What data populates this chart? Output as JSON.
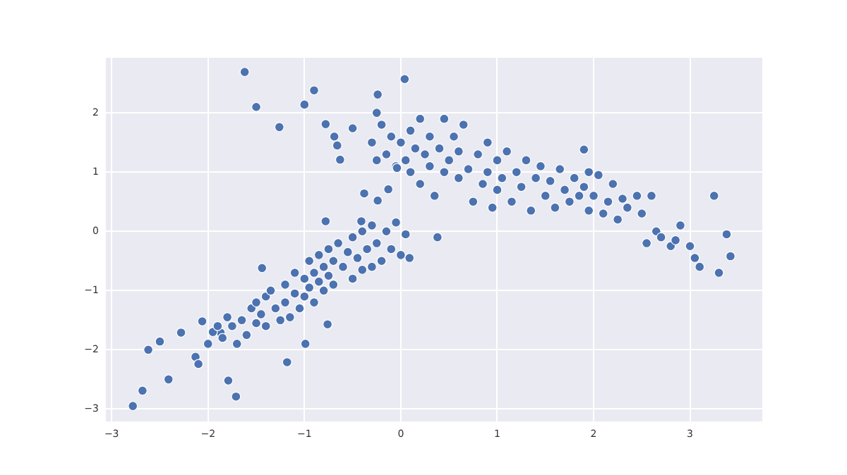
{
  "chart_data": {
    "type": "scatter",
    "marker": "circle",
    "grid": true,
    "legend": false,
    "xlim": [
      -3.06,
      3.75
    ],
    "ylim": [
      -3.21,
      2.93
    ],
    "xticks": [
      {
        "value": -3,
        "label": "−3"
      },
      {
        "value": -2,
        "label": "−2"
      },
      {
        "value": -1,
        "label": "−1"
      },
      0,
      1,
      2,
      3
    ],
    "yticks": [
      {
        "value": -3,
        "label": "−3"
      },
      {
        "value": -2,
        "label": "−2"
      },
      {
        "value": -1,
        "label": "−1"
      },
      0,
      1,
      2
    ],
    "series": [
      {
        "color": "#4c72b0",
        "x": [
          -1.62,
          -1.5,
          -1.26,
          -1.0,
          -0.9,
          -0.24,
          0.04,
          -0.25,
          -0.78,
          -0.69,
          -0.66,
          -0.63,
          -0.5,
          -2.78,
          -2.68,
          -2.62,
          -2.5,
          -2.41,
          -2.28,
          -1.79,
          -1.71,
          -2.13,
          -2.1,
          -2.06,
          -1.87,
          -1.18,
          -0.99,
          -0.76,
          -2.0,
          -1.95,
          -1.9,
          -1.85,
          -1.8,
          -1.75,
          -1.7,
          -1.65,
          -1.6,
          -1.55,
          -1.5,
          -1.5,
          -1.45,
          -1.4,
          -1.4,
          -1.35,
          -1.3,
          -1.25,
          -1.2,
          -1.2,
          -1.15,
          -1.1,
          -1.1,
          -1.05,
          -1.0,
          -1.0,
          -0.95,
          -0.95,
          -0.9,
          -0.9,
          -0.85,
          -0.85,
          -0.8,
          -0.8,
          -0.75,
          -0.75,
          -0.7,
          -0.7,
          -0.65,
          -0.6,
          -0.55,
          -0.5,
          -0.5,
          -0.45,
          -0.4,
          -0.4,
          -0.35,
          -0.3,
          -0.3,
          -0.25,
          -0.2,
          -0.15,
          -0.1,
          -0.05,
          0.0,
          0.05,
          -1.44,
          -0.38,
          -0.24,
          -0.13,
          -0.78,
          -0.41,
          0.38,
          0.09,
          0.0,
          0.05,
          0.1,
          0.1,
          0.15,
          0.2,
          0.2,
          0.25,
          0.3,
          0.3,
          0.35,
          0.4,
          0.45,
          0.45,
          0.5,
          0.55,
          0.6,
          0.6,
          0.65,
          0.7,
          0.75,
          0.8,
          0.85,
          0.9,
          0.9,
          0.95,
          1.0,
          1.0,
          1.05,
          1.1,
          1.15,
          1.2,
          1.25,
          1.3,
          1.35,
          1.4,
          1.45,
          1.5,
          1.55,
          1.6,
          1.65,
          1.7,
          1.75,
          1.8,
          1.85,
          1.9,
          1.95,
          1.95,
          2.0,
          2.05,
          2.1,
          2.15,
          2.2,
          2.25,
          2.3,
          2.35,
          2.45,
          2.5,
          2.55,
          2.6,
          2.65,
          2.7,
          2.8,
          2.85,
          2.9,
          3.0,
          3.05,
          3.1,
          3.25,
          3.3,
          3.38,
          3.42,
          1.9,
          -0.3,
          -0.2,
          -0.15,
          -0.1,
          -0.05,
          -0.25,
          -0.04
        ],
        "values": [
          2.69,
          2.1,
          1.76,
          2.14,
          2.38,
          2.31,
          2.57,
          2.0,
          1.81,
          1.6,
          1.45,
          1.21,
          1.74,
          -2.95,
          -2.69,
          -2.0,
          -1.86,
          -2.5,
          -1.71,
          -2.52,
          -2.79,
          -2.12,
          -2.24,
          -1.52,
          -1.71,
          -2.21,
          -1.9,
          -1.57,
          -1.9,
          -1.7,
          -1.6,
          -1.8,
          -1.45,
          -1.6,
          -1.9,
          -1.5,
          -1.75,
          -1.3,
          -1.2,
          -1.55,
          -1.4,
          -1.1,
          -1.6,
          -1.0,
          -1.3,
          -1.5,
          -0.9,
          -1.2,
          -1.45,
          -1.05,
          -0.7,
          -1.3,
          -0.8,
          -1.1,
          -0.5,
          -0.95,
          -0.7,
          -1.2,
          -0.4,
          -0.85,
          -0.6,
          -1.0,
          -0.3,
          -0.75,
          -0.5,
          -0.9,
          -0.2,
          -0.6,
          -0.35,
          -0.8,
          -0.1,
          -0.45,
          0.0,
          -0.65,
          -0.3,
          0.1,
          -0.6,
          -0.2,
          -0.5,
          0.0,
          -0.3,
          0.15,
          -0.4,
          -0.05,
          -0.62,
          0.64,
          0.52,
          0.71,
          0.17,
          0.17,
          -0.1,
          -0.45,
          1.5,
          1.2,
          1.7,
          1.0,
          1.4,
          1.9,
          0.8,
          1.3,
          1.6,
          1.1,
          0.6,
          1.4,
          1.9,
          1.0,
          1.2,
          1.6,
          0.9,
          1.35,
          1.8,
          1.05,
          0.5,
          1.3,
          0.8,
          1.5,
          1.0,
          0.4,
          1.2,
          0.7,
          0.9,
          1.35,
          0.5,
          1.0,
          0.75,
          1.2,
          0.35,
          0.9,
          1.1,
          0.6,
          0.85,
          0.4,
          1.05,
          0.7,
          0.5,
          0.9,
          0.6,
          0.75,
          1.0,
          0.35,
          0.6,
          0.95,
          0.3,
          0.5,
          0.8,
          0.2,
          0.55,
          0.4,
          0.6,
          0.3,
          -0.2,
          0.6,
          0.0,
          -0.1,
          -0.25,
          -0.15,
          0.1,
          -0.25,
          -0.45,
          -0.6,
          0.6,
          -0.7,
          -0.05,
          -0.42,
          1.38,
          1.5,
          1.8,
          1.3,
          1.6,
          1.1,
          1.2,
          1.07
        ]
      }
    ]
  }
}
